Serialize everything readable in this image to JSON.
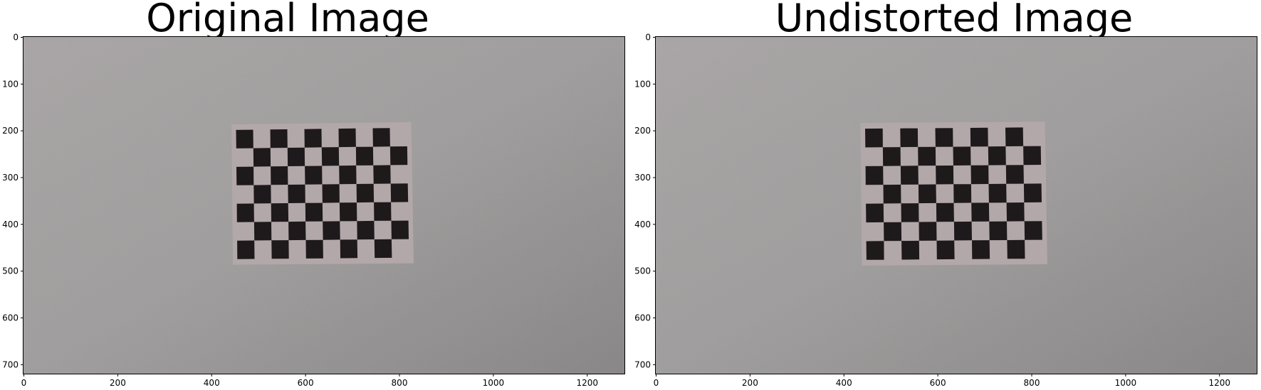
{
  "figure": {
    "panels": [
      {
        "title": "Original Image",
        "x_ticks": [
          "0",
          "200",
          "400",
          "600",
          "800",
          "1000",
          "1200"
        ],
        "y_ticks": [
          "0",
          "100",
          "200",
          "300",
          "400",
          "500",
          "600",
          "700"
        ],
        "board": {
          "tl": [
            443,
            187
          ],
          "tr": [
            826,
            182
          ],
          "br": [
            831,
            484
          ],
          "bl": [
            446,
            487
          ]
        }
      },
      {
        "title": "Undistorted Image",
        "x_ticks": [
          "0",
          "200",
          "400",
          "600",
          "800",
          "1000",
          "1200"
        ],
        "y_ticks": [
          "0",
          "100",
          "200",
          "300",
          "400",
          "500",
          "600",
          "700"
        ],
        "board": {
          "tl": [
            436,
            184
          ],
          "tr": [
            829,
            181
          ],
          "br": [
            834,
            486
          ],
          "bl": [
            439,
            489
          ]
        }
      }
    ],
    "image_size": {
      "width": 1280,
      "height": 720
    },
    "board_grid": {
      "cols": 10,
      "rows": 7
    },
    "colors": {
      "wall": "#a6a4a4",
      "wall_dark": "#8f8d8d",
      "paper": "#b3a8a9",
      "square": "#1e1a1b",
      "frame": "#000000"
    }
  }
}
